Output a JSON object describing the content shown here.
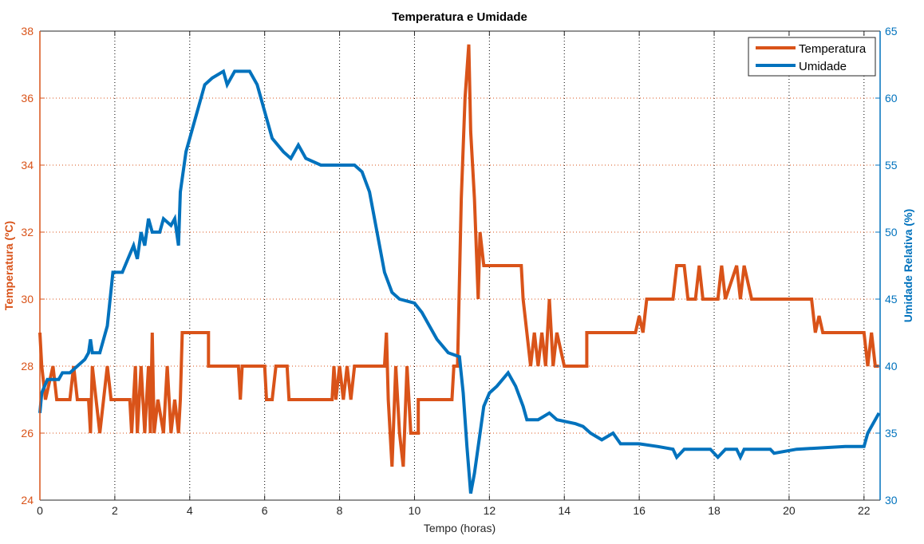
{
  "chart_data": {
    "type": "line",
    "title": "Temperatura e Umidade",
    "xlabel": "Tempo (horas)",
    "ylabel_left": "Temperatura (ºC)",
    "ylabel_right": "Umidade Relativa (%)",
    "xlim": [
      0,
      22.43
    ],
    "ylim_left": [
      24,
      38
    ],
    "ylim_right": [
      30,
      65
    ],
    "xticks": [
      "0",
      "2",
      "4",
      "6",
      "8",
      "10",
      "12",
      "14",
      "16",
      "18",
      "20",
      "22"
    ],
    "yticks_left": [
      "24",
      "26",
      "28",
      "30",
      "32",
      "34",
      "36",
      "38"
    ],
    "yticks_right": [
      "30",
      "35",
      "40",
      "45",
      "50",
      "55",
      "60",
      "65"
    ],
    "grid": true,
    "legend_position": "top-right",
    "colors": {
      "temperature": "#D95319",
      "humidity": "#0072BD"
    },
    "series": [
      {
        "name": "Temperatura",
        "axis": "left",
        "points": [
          [
            0,
            29
          ],
          [
            0.05,
            28
          ],
          [
            0.15,
            27
          ],
          [
            0.35,
            28
          ],
          [
            0.45,
            27
          ],
          [
            0.8,
            27
          ],
          [
            0.9,
            28
          ],
          [
            1,
            27
          ],
          [
            1.3,
            27
          ],
          [
            1.35,
            26
          ],
          [
            1.4,
            28
          ],
          [
            1.5,
            27
          ],
          [
            1.6,
            26
          ],
          [
            1.7,
            27
          ],
          [
            1.8,
            28
          ],
          [
            1.9,
            27
          ],
          [
            2.4,
            27
          ],
          [
            2.45,
            26
          ],
          [
            2.55,
            28
          ],
          [
            2.6,
            26
          ],
          [
            2.7,
            28
          ],
          [
            2.8,
            26
          ],
          [
            2.9,
            28
          ],
          [
            2.95,
            26
          ],
          [
            3.0,
            29
          ],
          [
            3.05,
            26
          ],
          [
            3.15,
            27
          ],
          [
            3.3,
            26
          ],
          [
            3.4,
            28
          ],
          [
            3.5,
            26
          ],
          [
            3.6,
            27
          ],
          [
            3.7,
            26
          ],
          [
            3.75,
            27
          ],
          [
            3.8,
            29
          ],
          [
            4.5,
            29
          ],
          [
            4.5,
            28
          ],
          [
            5.3,
            28
          ],
          [
            5.35,
            27
          ],
          [
            5.4,
            28
          ],
          [
            6.0,
            28
          ],
          [
            6.05,
            27
          ],
          [
            6.2,
            27
          ],
          [
            6.3,
            28
          ],
          [
            6.6,
            28
          ],
          [
            6.65,
            27
          ],
          [
            7.8,
            27
          ],
          [
            7.85,
            28
          ],
          [
            7.9,
            27
          ],
          [
            8.0,
            28
          ],
          [
            8.1,
            27
          ],
          [
            8.2,
            28
          ],
          [
            8.3,
            27
          ],
          [
            8.4,
            28
          ],
          [
            9.2,
            28
          ],
          [
            9.25,
            29
          ],
          [
            9.3,
            27
          ],
          [
            9.4,
            25
          ],
          [
            9.5,
            28
          ],
          [
            9.6,
            26
          ],
          [
            9.7,
            25
          ],
          [
            9.8,
            28
          ],
          [
            9.9,
            26
          ],
          [
            10.1,
            26
          ],
          [
            10.1,
            27
          ],
          [
            10.2,
            27
          ],
          [
            11.0,
            27
          ],
          [
            11.05,
            28
          ],
          [
            11.15,
            28
          ],
          [
            11.25,
            33
          ],
          [
            11.35,
            36
          ],
          [
            11.45,
            37.6
          ],
          [
            11.5,
            35
          ],
          [
            11.6,
            33
          ],
          [
            11.7,
            30
          ],
          [
            11.75,
            32
          ],
          [
            11.85,
            31
          ],
          [
            12.0,
            31
          ],
          [
            12.85,
            31
          ],
          [
            12.9,
            30
          ],
          [
            13.0,
            29
          ],
          [
            13.1,
            28
          ],
          [
            13.2,
            29
          ],
          [
            13.3,
            28
          ],
          [
            13.4,
            29
          ],
          [
            13.5,
            28
          ],
          [
            13.6,
            30
          ],
          [
            13.7,
            28
          ],
          [
            13.8,
            29
          ],
          [
            14.0,
            28
          ],
          [
            14.6,
            28
          ],
          [
            14.6,
            29
          ],
          [
            15.9,
            29
          ],
          [
            16.0,
            29.5
          ],
          [
            16.1,
            29
          ],
          [
            16.2,
            30
          ],
          [
            16.4,
            30
          ],
          [
            16.9,
            30
          ],
          [
            17.0,
            31
          ],
          [
            17.2,
            31
          ],
          [
            17.3,
            30
          ],
          [
            17.5,
            30
          ],
          [
            17.6,
            31
          ],
          [
            17.7,
            30
          ],
          [
            18.1,
            30
          ],
          [
            18.2,
            31
          ],
          [
            18.3,
            30
          ],
          [
            18.6,
            31
          ],
          [
            18.7,
            30
          ],
          [
            18.8,
            31
          ],
          [
            19.0,
            30
          ],
          [
            20.6,
            30
          ],
          [
            20.7,
            29
          ],
          [
            20.8,
            29.5
          ],
          [
            20.9,
            29
          ],
          [
            22.0,
            29
          ],
          [
            22.1,
            28
          ],
          [
            22.2,
            29
          ],
          [
            22.3,
            28
          ],
          [
            22.4,
            28
          ]
        ]
      },
      {
        "name": "Umidade",
        "axis": "right",
        "points": [
          [
            0,
            36.5
          ],
          [
            0.05,
            38
          ],
          [
            0.2,
            39
          ],
          [
            0.5,
            39
          ],
          [
            0.6,
            39.5
          ],
          [
            0.8,
            39.5
          ],
          [
            1.0,
            40
          ],
          [
            1.2,
            40.5
          ],
          [
            1.3,
            41
          ],
          [
            1.35,
            42
          ],
          [
            1.4,
            41
          ],
          [
            1.6,
            41
          ],
          [
            1.8,
            43
          ],
          [
            1.95,
            47
          ],
          [
            2.2,
            47
          ],
          [
            2.35,
            48
          ],
          [
            2.5,
            49
          ],
          [
            2.6,
            48
          ],
          [
            2.7,
            50
          ],
          [
            2.8,
            49
          ],
          [
            2.9,
            51
          ],
          [
            3.0,
            50
          ],
          [
            3.2,
            50
          ],
          [
            3.3,
            51
          ],
          [
            3.5,
            50.5
          ],
          [
            3.6,
            51
          ],
          [
            3.7,
            49
          ],
          [
            3.75,
            53
          ],
          [
            3.9,
            56
          ],
          [
            4.0,
            57
          ],
          [
            4.2,
            59
          ],
          [
            4.4,
            61
          ],
          [
            4.6,
            61.5
          ],
          [
            4.9,
            62
          ],
          [
            5.0,
            61
          ],
          [
            5.2,
            62
          ],
          [
            5.6,
            62
          ],
          [
            5.8,
            61
          ],
          [
            6.0,
            59
          ],
          [
            6.2,
            57
          ],
          [
            6.5,
            56
          ],
          [
            6.7,
            55.5
          ],
          [
            6.9,
            56.5
          ],
          [
            7.1,
            55.5
          ],
          [
            7.5,
            55
          ],
          [
            8.0,
            55
          ],
          [
            8.4,
            55
          ],
          [
            8.6,
            54.5
          ],
          [
            8.8,
            53
          ],
          [
            9.0,
            50
          ],
          [
            9.2,
            47
          ],
          [
            9.4,
            45.5
          ],
          [
            9.6,
            45
          ],
          [
            10.0,
            44.7
          ],
          [
            10.2,
            44
          ],
          [
            10.4,
            43
          ],
          [
            10.6,
            42
          ],
          [
            10.9,
            41
          ],
          [
            11.2,
            40.7
          ],
          [
            11.3,
            38
          ],
          [
            11.4,
            34
          ],
          [
            11.5,
            30.5
          ],
          [
            11.6,
            32
          ],
          [
            11.7,
            34
          ],
          [
            11.85,
            37
          ],
          [
            12.0,
            38
          ],
          [
            12.2,
            38.5
          ],
          [
            12.5,
            39.5
          ],
          [
            12.7,
            38.5
          ],
          [
            12.9,
            37
          ],
          [
            13.0,
            36
          ],
          [
            13.3,
            36
          ],
          [
            13.6,
            36.5
          ],
          [
            13.8,
            36
          ],
          [
            14.3,
            35.7
          ],
          [
            14.5,
            35.5
          ],
          [
            14.7,
            35
          ],
          [
            15.0,
            34.5
          ],
          [
            15.3,
            35
          ],
          [
            15.5,
            34.2
          ],
          [
            16.0,
            34.2
          ],
          [
            16.5,
            34
          ],
          [
            16.9,
            33.8
          ],
          [
            17.0,
            33.2
          ],
          [
            17.2,
            33.8
          ],
          [
            17.9,
            33.8
          ],
          [
            18.1,
            33.2
          ],
          [
            18.3,
            33.8
          ],
          [
            18.6,
            33.8
          ],
          [
            18.7,
            33.2
          ],
          [
            18.8,
            33.8
          ],
          [
            19.5,
            33.8
          ],
          [
            19.6,
            33.5
          ],
          [
            20.2,
            33.8
          ],
          [
            21.5,
            34
          ],
          [
            22.0,
            34
          ],
          [
            22.1,
            35
          ],
          [
            22.3,
            36
          ],
          [
            22.4,
            36.5
          ]
        ]
      }
    ]
  }
}
